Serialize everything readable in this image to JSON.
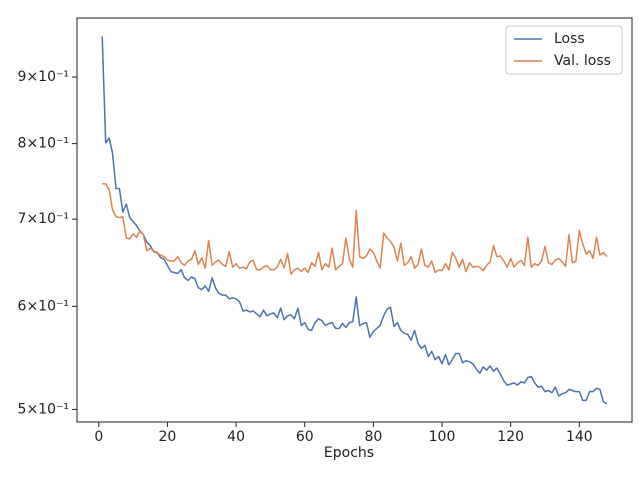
{
  "chart_data": {
    "type": "line",
    "x_label": "Epochs",
    "log_y": true,
    "legend": "upper right",
    "x": [
      1,
      2,
      3,
      4,
      5,
      6,
      7,
      8,
      9,
      10,
      11,
      12,
      13,
      14,
      15,
      16,
      17,
      18,
      19,
      20,
      21,
      22,
      23,
      24,
      25,
      26,
      27,
      28,
      29,
      30,
      31,
      32,
      33,
      34,
      35,
      36,
      37,
      38,
      39,
      40,
      41,
      42,
      43,
      44,
      45,
      46,
      47,
      48,
      49,
      50,
      51,
      52,
      53,
      54,
      55,
      56,
      57,
      58,
      59,
      60,
      61,
      62,
      63,
      64,
      65,
      66,
      67,
      68,
      69,
      70,
      71,
      72,
      73,
      74,
      75,
      76,
      77,
      78,
      79,
      80,
      81,
      82,
      83,
      84,
      85,
      86,
      87,
      88,
      89,
      90,
      91,
      92,
      93,
      94,
      95,
      96,
      97,
      98,
      99,
      100,
      101,
      102,
      103,
      104,
      105,
      106,
      107,
      108,
      109,
      110,
      111,
      112,
      113,
      114,
      115,
      116,
      117,
      118,
      119,
      120,
      121,
      122,
      123,
      124,
      125,
      126,
      127,
      128,
      129,
      130,
      131,
      132,
      133,
      134,
      135,
      136,
      137,
      138,
      139,
      140,
      141,
      142,
      143,
      144,
      145,
      146,
      147,
      148
    ],
    "series": [
      {
        "name": "Loss",
        "color": "#4c72b0",
        "values": [
          0.967,
          0.801,
          0.808,
          0.787,
          0.739,
          0.739,
          0.709,
          0.719,
          0.702,
          0.697,
          0.692,
          0.685,
          0.681,
          0.672,
          0.668,
          0.661,
          0.66,
          0.654,
          0.652,
          0.645,
          0.638,
          0.637,
          0.636,
          0.64,
          0.631,
          0.628,
          0.632,
          0.63,
          0.62,
          0.618,
          0.622,
          0.616,
          0.631,
          0.62,
          0.614,
          0.612,
          0.612,
          0.608,
          0.609,
          0.608,
          0.605,
          0.595,
          0.596,
          0.594,
          0.595,
          0.592,
          0.589,
          0.596,
          0.59,
          0.592,
          0.593,
          0.588,
          0.598,
          0.586,
          0.59,
          0.591,
          0.587,
          0.598,
          0.58,
          0.583,
          0.576,
          0.575,
          0.583,
          0.587,
          0.585,
          0.58,
          0.582,
          0.583,
          0.577,
          0.577,
          0.582,
          0.578,
          0.583,
          0.584,
          0.61,
          0.58,
          0.582,
          0.583,
          0.568,
          0.574,
          0.577,
          0.58,
          0.59,
          0.597,
          0.599,
          0.579,
          0.583,
          0.575,
          0.572,
          0.571,
          0.565,
          0.575,
          0.562,
          0.557,
          0.56,
          0.549,
          0.554,
          0.546,
          0.549,
          0.542,
          0.551,
          0.541,
          0.546,
          0.552,
          0.552,
          0.543,
          0.545,
          0.544,
          0.542,
          0.537,
          0.533,
          0.539,
          0.536,
          0.54,
          0.535,
          0.538,
          0.532,
          0.526,
          0.522,
          0.523,
          0.524,
          0.522,
          0.525,
          0.524,
          0.529,
          0.53,
          0.524,
          0.52,
          0.521,
          0.516,
          0.517,
          0.515,
          0.52,
          0.512,
          0.514,
          0.515,
          0.518,
          0.517,
          0.516,
          0.516,
          0.508,
          0.508,
          0.516,
          0.516,
          0.519,
          0.518,
          0.507,
          0.505
        ]
      },
      {
        "name": "Val. loss",
        "color": "#dd8452",
        "values": [
          0.745,
          0.745,
          0.738,
          0.712,
          0.703,
          0.702,
          0.703,
          0.677,
          0.676,
          0.682,
          0.678,
          0.686,
          0.681,
          0.662,
          0.665,
          0.662,
          0.659,
          0.657,
          0.655,
          0.651,
          0.65,
          0.65,
          0.655,
          0.648,
          0.645,
          0.65,
          0.652,
          0.662,
          0.646,
          0.654,
          0.642,
          0.674,
          0.645,
          0.649,
          0.651,
          0.646,
          0.644,
          0.661,
          0.643,
          0.647,
          0.642,
          0.643,
          0.641,
          0.649,
          0.651,
          0.64,
          0.64,
          0.643,
          0.645,
          0.64,
          0.64,
          0.643,
          0.652,
          0.642,
          0.659,
          0.635,
          0.64,
          0.642,
          0.638,
          0.642,
          0.637,
          0.648,
          0.644,
          0.66,
          0.64,
          0.647,
          0.643,
          0.665,
          0.64,
          0.644,
          0.647,
          0.677,
          0.652,
          0.643,
          0.711,
          0.655,
          0.653,
          0.656,
          0.664,
          0.66,
          0.65,
          0.642,
          0.683,
          0.677,
          0.673,
          0.666,
          0.65,
          0.671,
          0.645,
          0.648,
          0.655,
          0.642,
          0.646,
          0.664,
          0.645,
          0.643,
          0.65,
          0.637,
          0.64,
          0.639,
          0.647,
          0.64,
          0.66,
          0.653,
          0.643,
          0.652,
          0.638,
          0.648,
          0.643,
          0.644,
          0.643,
          0.639,
          0.645,
          0.649,
          0.668,
          0.655,
          0.656,
          0.65,
          0.643,
          0.653,
          0.643,
          0.648,
          0.651,
          0.645,
          0.678,
          0.643,
          0.647,
          0.645,
          0.65,
          0.667,
          0.648,
          0.646,
          0.651,
          0.653,
          0.649,
          0.644,
          0.681,
          0.648,
          0.65,
          0.686,
          0.67,
          0.658,
          0.662,
          0.653,
          0.678,
          0.657,
          0.66,
          0.655
        ]
      }
    ],
    "xlim": [
      -6.35,
      155.35
    ],
    "xticks": [
      0,
      20,
      40,
      60,
      80,
      100,
      120,
      140
    ],
    "ylim": [
      0.489,
      0.999
    ],
    "yticks": [
      {
        "value": 0.5,
        "label": "5×10⁻¹"
      },
      {
        "value": 0.6,
        "label": "6×10⁻¹"
      },
      {
        "value": 0.7,
        "label": "7×10⁻¹"
      },
      {
        "value": 0.8,
        "label": "8×10⁻¹"
      },
      {
        "value": 0.9,
        "label": "9×10⁻¹"
      }
    ]
  }
}
